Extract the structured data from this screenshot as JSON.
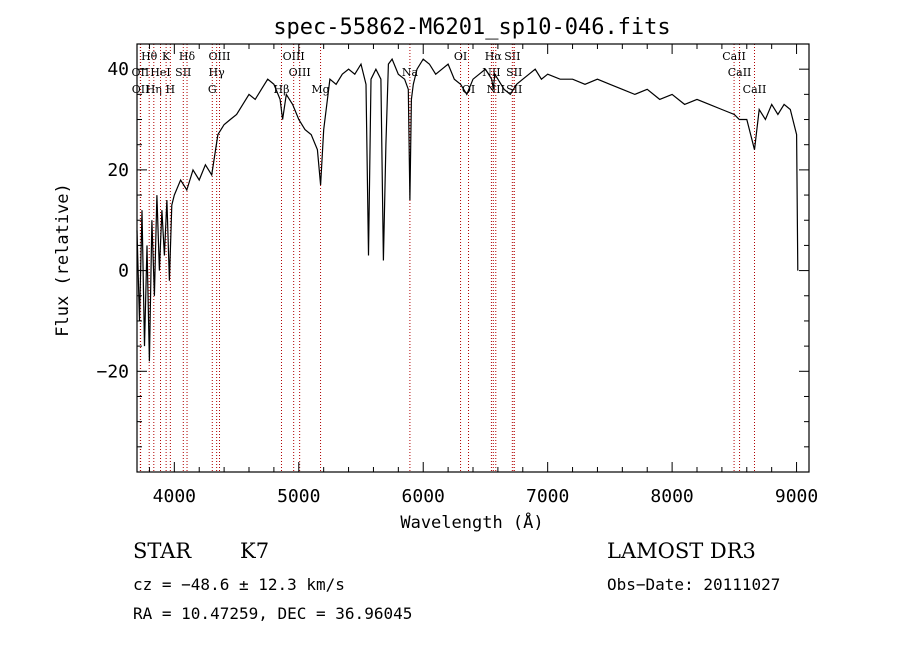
{
  "chart_data": {
    "type": "line",
    "title": "spec-55862-M6201_sp10-046.fits",
    "xlabel": "Wavelength (Å)",
    "ylabel": "Flux (relative)",
    "xlim": [
      3700,
      9100
    ],
    "ylim": [
      -40,
      45
    ],
    "x_ticks": [
      4000,
      5000,
      6000,
      7000,
      8000,
      9000
    ],
    "y_ticks": [
      -20,
      0,
      20,
      40
    ],
    "x_tick_labels": [
      "4000",
      "5000",
      "6000",
      "7000",
      "8000",
      "9000"
    ],
    "y_tick_labels": [
      "−20",
      "0",
      "20",
      "40"
    ],
    "series": [
      {
        "name": "flux",
        "x": [
          3700,
          3720,
          3740,
          3760,
          3780,
          3800,
          3820,
          3840,
          3860,
          3880,
          3900,
          3920,
          3940,
          3960,
          3980,
          4000,
          4050,
          4100,
          4150,
          4200,
          4250,
          4300,
          4350,
          4400,
          4450,
          4500,
          4550,
          4600,
          4650,
          4700,
          4750,
          4800,
          4850,
          4870,
          4900,
          4950,
          5000,
          5050,
          5100,
          5150,
          5175,
          5200,
          5250,
          5300,
          5350,
          5400,
          5450,
          5500,
          5540,
          5560,
          5580,
          5620,
          5660,
          5680,
          5700,
          5720,
          5750,
          5800,
          5850,
          5880,
          5893,
          5905,
          5920,
          5950,
          6000,
          6050,
          6100,
          6150,
          6200,
          6250,
          6300,
          6350,
          6400,
          6450,
          6500,
          6550,
          6563,
          6575,
          6600,
          6650,
          6700,
          6750,
          6800,
          6850,
          6900,
          6950,
          7000,
          7100,
          7200,
          7300,
          7400,
          7500,
          7600,
          7700,
          7800,
          7900,
          8000,
          8100,
          8200,
          8300,
          8400,
          8500,
          8540,
          8600,
          8662,
          8700,
          8750,
          8800,
          8850,
          8900,
          8950,
          9000,
          9010
        ],
        "values": [
          8,
          -10,
          12,
          -15,
          5,
          -18,
          10,
          -5,
          15,
          0,
          12,
          3,
          14,
          -2,
          13,
          15,
          18,
          16,
          20,
          18,
          21,
          19,
          27,
          29,
          30,
          31,
          33,
          35,
          34,
          36,
          38,
          37,
          34,
          30,
          35,
          33,
          30,
          28,
          27,
          24,
          17,
          28,
          38,
          37,
          39,
          40,
          39,
          41,
          37,
          3,
          38,
          40,
          38,
          2,
          25,
          41,
          42,
          39,
          38,
          36,
          14,
          34,
          37,
          40,
          42,
          41,
          39,
          40,
          41,
          38,
          37,
          35,
          38,
          39,
          40,
          38,
          36,
          39,
          38,
          36,
          35,
          37,
          38,
          39,
          40,
          38,
          39,
          38,
          38,
          37,
          38,
          37,
          36,
          35,
          36,
          34,
          35,
          33,
          34,
          33,
          32,
          31,
          30,
          30,
          24,
          32,
          30,
          33,
          31,
          33,
          32,
          27,
          0
        ]
      }
    ],
    "line_markers": [
      {
        "label": "Hθ",
        "x": 3798,
        "row": 1
      },
      {
        "label": "OII",
        "x": 3727,
        "row": 2
      },
      {
        "label": "OII",
        "x": 3729,
        "row": 3
      },
      {
        "label": "Hη",
        "x": 3835,
        "row": 3
      },
      {
        "label": "HeI",
        "x": 3889,
        "row": 2
      },
      {
        "label": "K",
        "x": 3934,
        "row": 1
      },
      {
        "label": "H",
        "x": 3968,
        "row": 3
      },
      {
        "label": "SII",
        "x": 4072,
        "row": 2
      },
      {
        "label": "Hδ",
        "x": 4102,
        "row": 1
      },
      {
        "label": "OIII",
        "x": 4363,
        "row": 1
      },
      {
        "label": "Hγ",
        "x": 4340,
        "row": 2
      },
      {
        "label": "G",
        "x": 4305,
        "row": 3
      },
      {
        "label": "Hβ",
        "x": 4861,
        "row": 3
      },
      {
        "label": "OIII",
        "x": 4959,
        "row": 1
      },
      {
        "label": "OIII",
        "x": 5007,
        "row": 2
      },
      {
        "label": "Mg",
        "x": 5175,
        "row": 3
      },
      {
        "label": "Na",
        "x": 5893,
        "row": 2
      },
      {
        "label": "OI",
        "x": 6300,
        "row": 1
      },
      {
        "label": "OI",
        "x": 6364,
        "row": 3
      },
      {
        "label": "NII",
        "x": 6548,
        "row": 2
      },
      {
        "label": "NII",
        "x": 6583,
        "row": 3
      },
      {
        "label": "Hα",
        "x": 6563,
        "row": 1
      },
      {
        "label": "SII",
        "x": 6716,
        "row": 1
      },
      {
        "label": "SII",
        "x": 6731,
        "row": 2
      },
      {
        "label": "SII",
        "x": 6731,
        "row": 3
      },
      {
        "label": "CaII",
        "x": 8498,
        "row": 1
      },
      {
        "label": "CaII",
        "x": 8542,
        "row": 2
      },
      {
        "label": "CaII",
        "x": 8662,
        "row": 3
      }
    ]
  },
  "info": {
    "class": "STAR",
    "subclass": "K7",
    "survey": "LAMOST DR3",
    "cz": "cz = −48.6 ± 12.3 km/s",
    "obs_date": "Obs−Date: 20111027",
    "radec": "RA =  10.47259, DEC =  36.96045"
  },
  "colors": {
    "spectrum": "#000000",
    "marker": "#b00000",
    "axis": "#000000"
  }
}
